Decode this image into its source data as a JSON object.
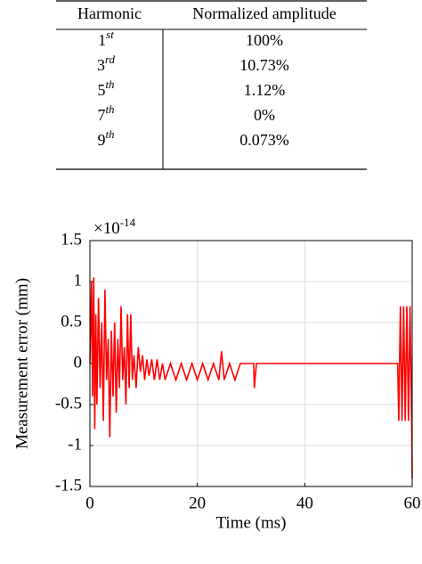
{
  "table": {
    "header": [
      "Harmonic",
      "Normalized amplitude"
    ],
    "rows": [
      [
        {
          "base": "1",
          "sup": "st"
        },
        "100%"
      ],
      [
        {
          "base": "3",
          "sup": "rd"
        },
        "10.73%"
      ],
      [
        {
          "base": "5",
          "sup": "th"
        },
        "1.12%"
      ],
      [
        {
          "base": "7",
          "sup": "th"
        },
        "0%"
      ],
      [
        {
          "base": "9",
          "sup": "th"
        },
        "0.073%"
      ]
    ]
  },
  "chart_data": {
    "type": "line",
    "xlabel": "Time (ms)",
    "ylabel": "Measurement error (mm)",
    "y_multiplier": {
      "base": "×10",
      "exp": "-14"
    },
    "x": [
      0,
      0.3,
      0.5,
      0.7,
      0.9,
      1.1,
      1.3,
      1.6,
      1.9,
      2.2,
      2.5,
      2.8,
      3.1,
      3.4,
      3.7,
      4.0,
      4.3,
      4.6,
      4.9,
      5.2,
      5.5,
      5.8,
      6.1,
      6.4,
      6.7,
      7.0,
      7.3,
      7.6,
      7.9,
      8.2,
      8.6,
      9.0,
      9.4,
      9.8,
      10.2,
      10.6,
      11.0,
      11.5,
      12,
      12.5,
      13,
      13.5,
      14,
      15,
      16,
      17,
      18,
      19,
      20,
      21,
      22,
      23,
      24,
      24.5,
      25,
      26,
      27,
      28,
      30.5,
      30.6,
      31,
      40,
      57.3,
      57.5,
      57.8,
      58.1,
      58.4,
      58.7,
      59,
      59.3,
      59.6,
      59.9,
      60
    ],
    "series": [
      {
        "color": "#ff0000",
        "values": [
          0,
          1.0,
          -0.4,
          1.05,
          -0.8,
          0.6,
          -0.5,
          0.8,
          -0.3,
          0.5,
          -0.7,
          0.9,
          -0.2,
          0.3,
          -0.9,
          0.4,
          -0.4,
          0.5,
          -0.6,
          0.3,
          -0.3,
          0.7,
          -0.2,
          0.2,
          -0.5,
          0.6,
          -0.3,
          0.6,
          -0.2,
          0.1,
          -0.3,
          0.2,
          -0.1,
          0.1,
          -0.2,
          0.05,
          -0.15,
          0.05,
          -0.2,
          0.05,
          -0.2,
          0,
          -0.2,
          0,
          -0.2,
          0,
          -0.2,
          0,
          -0.2,
          0,
          -0.2,
          0,
          -0.2,
          0.15,
          -0.2,
          0,
          -0.2,
          0,
          0,
          -0.3,
          0,
          0,
          0,
          -0.7,
          0.7,
          -0.7,
          0.7,
          -0.7,
          0.7,
          -0.7,
          0.7,
          -0.7,
          -1.4
        ]
      }
    ],
    "xlim": [
      0,
      60
    ],
    "xticks": [
      0,
      20,
      40,
      60
    ],
    "ylim": [
      -1.5,
      1.5
    ],
    "yticks": [
      -1.5,
      -1,
      -0.5,
      0,
      0.5,
      1,
      1.5
    ],
    "grid": true
  }
}
